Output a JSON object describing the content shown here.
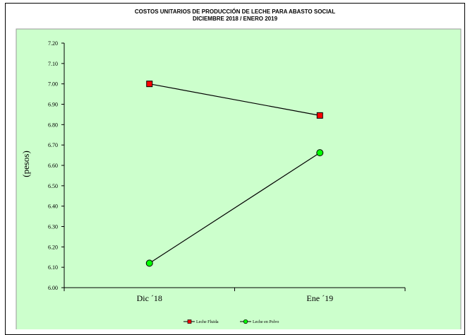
{
  "chart_data": {
    "type": "line",
    "title": "COSTOS UNITARIOS DE PRODUCCIÓN DE LECHE PARA ABASTO SOCIAL",
    "subtitle": "DICIEMBRE 2018 / ENERO 2019",
    "xlabel": "",
    "ylabel": "(pesos)",
    "categories": [
      "Dic ´18",
      "Ene ´19"
    ],
    "ylim": [
      6.0,
      7.2
    ],
    "yticks": [
      "6.00",
      "6.10",
      "6.20",
      "6.30",
      "6.40",
      "6.50",
      "6.60",
      "6.70",
      "6.80",
      "6.90",
      "7.00",
      "7.10",
      "7.20"
    ],
    "grid": false,
    "legend_position": "bottom",
    "plot_background": "#ccffcc",
    "series": [
      {
        "name": "Leche Fluida",
        "values": [
          7.0,
          6.845
        ],
        "marker": "square",
        "color": "#ff0000"
      },
      {
        "name": "Leche en Polvo",
        "values": [
          6.12,
          6.662
        ],
        "marker": "circle",
        "color": "#00ff00"
      }
    ]
  }
}
